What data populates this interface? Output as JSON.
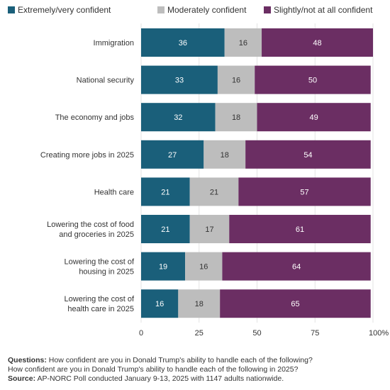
{
  "chart_data": {
    "type": "bar",
    "orientation": "horizontal",
    "stacked": true,
    "categories": [
      "Immigration",
      "National security",
      "The economy and jobs",
      "Creating more jobs  in 2025",
      "Health care",
      "Lowering the cost of food and groceries in 2025",
      "Lowering the cost of housing in 2025",
      "Lowering the cost of health care in 2025"
    ],
    "category_lines": [
      [
        "Immigration"
      ],
      [
        "National security"
      ],
      [
        "The economy and jobs"
      ],
      [
        "Creating more jobs  in 2025"
      ],
      [
        "Health care"
      ],
      [
        "Lowering the cost of food",
        "and groceries in 2025"
      ],
      [
        "Lowering the cost of",
        "housing in 2025"
      ],
      [
        "Lowering the cost of",
        "health care in 2025"
      ]
    ],
    "series": [
      {
        "name": "Extremely/very confident",
        "color": "#1a5f7a",
        "values": [
          36,
          33,
          32,
          27,
          21,
          21,
          19,
          16
        ]
      },
      {
        "name": "Moderately confident",
        "color": "#bdbdbd",
        "values": [
          16,
          16,
          18,
          18,
          21,
          17,
          16,
          18
        ]
      },
      {
        "name": "Slightly/not at all confident",
        "color": "#6b2e63",
        "values": [
          48,
          50,
          49,
          54,
          57,
          61,
          64,
          65
        ]
      }
    ],
    "xlim": [
      0,
      100
    ],
    "xticks": [
      "0",
      "25",
      "50",
      "75",
      "100%"
    ],
    "xtick_values": [
      0,
      25,
      50,
      75,
      100
    ],
    "legend_position": "top",
    "grid": "vertical",
    "grid_color": "#e3e3e3"
  },
  "footer": {
    "questions_label": "Questions:",
    "questions_line1": "How confident are you in Donald Trump's ability to handle each of the following?",
    "questions_line2": "How confident are you in Donald Trump's ability to handle each of the following in 2025?",
    "source_label": "Source:",
    "source_text": "AP-NORC Poll conducted January 9-13, 2025 with 1147 adults nationwide."
  }
}
